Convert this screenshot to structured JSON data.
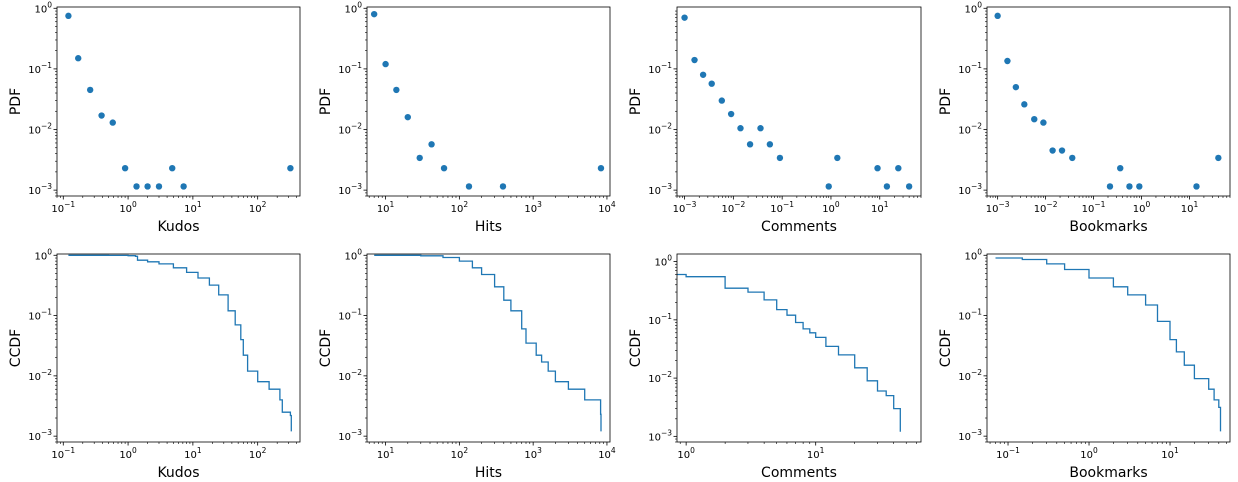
{
  "figure": {
    "marker_color": "#1f77b4",
    "line_color": "#1f77b4"
  },
  "chart_data": [
    {
      "type": "scatter",
      "xscale": "log",
      "yscale": "log",
      "xlabel": "Kudos",
      "ylabel": "PDF",
      "xlim": [
        0.08,
        450
      ],
      "ylim": [
        0.0008,
        1.05
      ],
      "xticks": [
        0.1,
        1,
        10,
        100
      ],
      "xtick_labels": [
        {
          "b": "10",
          "e": "−1"
        },
        {
          "b": "10",
          "e": "0"
        },
        {
          "b": "10",
          "e": "1"
        },
        {
          "b": "10",
          "e": "2"
        }
      ],
      "yticks": [
        0.001,
        0.01,
        0.1,
        1
      ],
      "ytick_labels": [
        {
          "b": "10",
          "e": "−3"
        },
        {
          "b": "10",
          "e": "−2"
        },
        {
          "b": "10",
          "e": "−1"
        },
        {
          "b": "10",
          "e": "0"
        }
      ],
      "points": [
        [
          0.12,
          0.75
        ],
        [
          0.17,
          0.15
        ],
        [
          0.26,
          0.045
        ],
        [
          0.39,
          0.017
        ],
        [
          0.58,
          0.013
        ],
        [
          0.9,
          0.0023
        ],
        [
          1.35,
          0.00115
        ],
        [
          2.0,
          0.00115
        ],
        [
          3.0,
          0.00115
        ],
        [
          4.8,
          0.0023
        ],
        [
          7.2,
          0.00115
        ],
        [
          320,
          0.0023
        ]
      ]
    },
    {
      "type": "scatter",
      "xscale": "log",
      "yscale": "log",
      "xlabel": "Hits",
      "ylabel": "PDF",
      "xlim": [
        5.6,
        11000
      ],
      "ylim": [
        0.0008,
        1.05
      ],
      "xticks": [
        10,
        100,
        1000,
        10000
      ],
      "xtick_labels": [
        {
          "b": "10",
          "e": "1"
        },
        {
          "b": "10",
          "e": "2"
        },
        {
          "b": "10",
          "e": "3"
        },
        {
          "b": "10",
          "e": "4"
        }
      ],
      "yticks": [
        0.001,
        0.01,
        0.1,
        1
      ],
      "ytick_labels": [
        {
          "b": "10",
          "e": "−3"
        },
        {
          "b": "10",
          "e": "−2"
        },
        {
          "b": "10",
          "e": "−1"
        },
        {
          "b": "10",
          "e": "0"
        }
      ],
      "points": [
        [
          7,
          0.8
        ],
        [
          10,
          0.12
        ],
        [
          14,
          0.045
        ],
        [
          20,
          0.016
        ],
        [
          29,
          0.0034
        ],
        [
          42,
          0.0057
        ],
        [
          62,
          0.0023
        ],
        [
          135,
          0.00115
        ],
        [
          390,
          0.00115
        ],
        [
          8300,
          0.0023
        ]
      ]
    },
    {
      "type": "scatter",
      "xscale": "log",
      "yscale": "log",
      "xlabel": "Comments",
      "ylabel": "PDF",
      "xlim": [
        0.0007,
        70
      ],
      "ylim": [
        0.0008,
        1.05
      ],
      "xticks": [
        0.001,
        0.01,
        0.1,
        1,
        10
      ],
      "xtick_labels": [
        {
          "b": "10",
          "e": "−3"
        },
        {
          "b": "10",
          "e": "−2"
        },
        {
          "b": "10",
          "e": "−1"
        },
        {
          "b": "10",
          "e": "0"
        },
        {
          "b": "10",
          "e": "1"
        }
      ],
      "yticks": [
        0.001,
        0.01,
        0.1
      ],
      "ytick_labels": [
        {
          "b": "10",
          "e": "−3"
        },
        {
          "b": "10",
          "e": "−2"
        },
        {
          "b": "10",
          "e": "−1"
        }
      ],
      "points": [
        [
          0.001,
          0.7
        ],
        [
          0.0016,
          0.14
        ],
        [
          0.0024,
          0.08
        ],
        [
          0.0036,
          0.057
        ],
        [
          0.0058,
          0.03
        ],
        [
          0.009,
          0.018
        ],
        [
          0.014,
          0.0105
        ],
        [
          0.022,
          0.0057
        ],
        [
          0.036,
          0.0105
        ],
        [
          0.056,
          0.0057
        ],
        [
          0.09,
          0.0034
        ],
        [
          0.9,
          0.00115
        ],
        [
          1.35,
          0.0034
        ],
        [
          9,
          0.0023
        ],
        [
          14,
          0.00115
        ],
        [
          24,
          0.0023
        ],
        [
          40,
          0.00115
        ]
      ]
    },
    {
      "type": "scatter",
      "xscale": "log",
      "yscale": "log",
      "xlabel": "Bookmarks",
      "ylabel": "PDF",
      "xlim": [
        0.0006,
        70
      ],
      "ylim": [
        0.0008,
        1.05
      ],
      "xticks": [
        0.001,
        0.01,
        0.1,
        1,
        10
      ],
      "xtick_labels": [
        {
          "b": "10",
          "e": "−3"
        },
        {
          "b": "10",
          "e": "−2"
        },
        {
          "b": "10",
          "e": "−1"
        },
        {
          "b": "10",
          "e": "0"
        },
        {
          "b": "10",
          "e": "1"
        }
      ],
      "yticks": [
        0.001,
        0.01,
        0.1,
        1
      ],
      "ytick_labels": [
        {
          "b": "10",
          "e": "−3"
        },
        {
          "b": "10",
          "e": "−2"
        },
        {
          "b": "10",
          "e": "−1"
        },
        {
          "b": "10",
          "e": "0"
        }
      ],
      "points": [
        [
          0.001,
          0.75
        ],
        [
          0.0016,
          0.135
        ],
        [
          0.0024,
          0.05
        ],
        [
          0.0036,
          0.026
        ],
        [
          0.0058,
          0.0148
        ],
        [
          0.009,
          0.013
        ],
        [
          0.014,
          0.0045
        ],
        [
          0.022,
          0.0045
        ],
        [
          0.036,
          0.0034
        ],
        [
          0.22,
          0.00115
        ],
        [
          0.36,
          0.0023
        ],
        [
          0.56,
          0.00115
        ],
        [
          0.9,
          0.00115
        ],
        [
          14,
          0.00115
        ],
        [
          40,
          0.0034
        ]
      ]
    },
    {
      "type": "line",
      "xscale": "log",
      "yscale": "log",
      "step": true,
      "xlabel": "Kudos",
      "ylabel": "CCDF",
      "xlim": [
        0.08,
        450
      ],
      "ylim": [
        0.0008,
        1.05
      ],
      "xticks": [
        0.1,
        1,
        10,
        100
      ],
      "xtick_labels": [
        {
          "b": "10",
          "e": "−1"
        },
        {
          "b": "10",
          "e": "0"
        },
        {
          "b": "10",
          "e": "1"
        },
        {
          "b": "10",
          "e": "2"
        }
      ],
      "yticks": [
        0.001,
        0.01,
        0.1,
        1
      ],
      "ytick_labels": [
        {
          "b": "10",
          "e": "−3"
        },
        {
          "b": "10",
          "e": "−2"
        },
        {
          "b": "10",
          "e": "−1"
        },
        {
          "b": "10",
          "e": "0"
        }
      ],
      "points": [
        [
          0.12,
          1.0
        ],
        [
          0.5,
          0.995
        ],
        [
          1.0,
          0.985
        ],
        [
          1.3,
          0.96
        ],
        [
          1.4,
          0.83
        ],
        [
          2,
          0.78
        ],
        [
          3,
          0.72
        ],
        [
          5,
          0.62
        ],
        [
          8,
          0.52
        ],
        [
          12,
          0.42
        ],
        [
          18,
          0.32
        ],
        [
          25,
          0.22
        ],
        [
          35,
          0.12
        ],
        [
          45,
          0.07
        ],
        [
          55,
          0.04
        ],
        [
          60,
          0.022
        ],
        [
          70,
          0.012
        ],
        [
          100,
          0.008
        ],
        [
          150,
          0.006
        ],
        [
          220,
          0.004
        ],
        [
          240,
          0.0025
        ],
        [
          320,
          0.0022
        ],
        [
          330,
          0.0012
        ]
      ]
    },
    {
      "type": "line",
      "xscale": "log",
      "yscale": "log",
      "step": true,
      "xlabel": "Hits",
      "ylabel": "CCDF",
      "xlim": [
        5.6,
        11000
      ],
      "ylim": [
        0.0008,
        1.05
      ],
      "xticks": [
        10,
        100,
        1000,
        10000
      ],
      "xtick_labels": [
        {
          "b": "10",
          "e": "1"
        },
        {
          "b": "10",
          "e": "2"
        },
        {
          "b": "10",
          "e": "3"
        },
        {
          "b": "10",
          "e": "4"
        }
      ],
      "yticks": [
        0.001,
        0.01,
        0.1,
        1
      ],
      "ytick_labels": [
        {
          "b": "10",
          "e": "−3"
        },
        {
          "b": "10",
          "e": "−2"
        },
        {
          "b": "10",
          "e": "−1"
        },
        {
          "b": "10",
          "e": "0"
        }
      ],
      "points": [
        [
          7,
          1.0
        ],
        [
          30,
          0.98
        ],
        [
          60,
          0.92
        ],
        [
          100,
          0.8
        ],
        [
          150,
          0.62
        ],
        [
          200,
          0.48
        ],
        [
          300,
          0.3
        ],
        [
          400,
          0.18
        ],
        [
          500,
          0.12
        ],
        [
          700,
          0.06
        ],
        [
          800,
          0.035
        ],
        [
          1100,
          0.022
        ],
        [
          1300,
          0.017
        ],
        [
          1600,
          0.012
        ],
        [
          2000,
          0.008
        ],
        [
          3000,
          0.006
        ],
        [
          5000,
          0.004
        ],
        [
          8200,
          0.0023
        ],
        [
          8300,
          0.0012
        ]
      ]
    },
    {
      "type": "line",
      "xscale": "log",
      "yscale": "log",
      "step": true,
      "xlabel": "Comments",
      "ylabel": "CCDF",
      "xlim": [
        0.85,
        65
      ],
      "ylim": [
        0.0008,
        1.35
      ],
      "xticks": [
        1,
        10
      ],
      "xtick_labels": [
        {
          "b": "10",
          "e": "0"
        },
        {
          "b": "10",
          "e": "1"
        }
      ],
      "yticks": [
        0.001,
        0.01,
        0.1,
        1
      ],
      "ytick_labels": [
        {
          "b": "10",
          "e": "−3"
        },
        {
          "b": "10",
          "e": "−2"
        },
        {
          "b": "10",
          "e": "−1"
        },
        {
          "b": "10",
          "e": "0"
        }
      ],
      "points": [
        [
          0.85,
          0.6
        ],
        [
          1,
          0.55
        ],
        [
          2,
          0.35
        ],
        [
          3,
          0.3
        ],
        [
          4,
          0.22
        ],
        [
          5,
          0.15
        ],
        [
          6,
          0.12
        ],
        [
          7,
          0.09
        ],
        [
          8,
          0.07
        ],
        [
          9,
          0.06
        ],
        [
          10,
          0.05
        ],
        [
          12,
          0.035
        ],
        [
          15,
          0.025
        ],
        [
          20,
          0.015
        ],
        [
          25,
          0.009
        ],
        [
          30,
          0.006
        ],
        [
          35,
          0.005
        ],
        [
          40,
          0.003
        ],
        [
          45,
          0.0012
        ]
      ]
    },
    {
      "type": "line",
      "xscale": "log",
      "yscale": "log",
      "step": true,
      "xlabel": "Bookmarks",
      "ylabel": "CCDF",
      "xlim": [
        0.055,
        55
      ],
      "ylim": [
        0.0008,
        1.05
      ],
      "xticks": [
        0.1,
        1,
        10
      ],
      "xtick_labels": [
        {
          "b": "10",
          "e": "−1"
        },
        {
          "b": "10",
          "e": "0"
        },
        {
          "b": "10",
          "e": "1"
        }
      ],
      "yticks": [
        0.001,
        0.01,
        0.1,
        1
      ],
      "ytick_labels": [
        {
          "b": "10",
          "e": "−3"
        },
        {
          "b": "10",
          "e": "−2"
        },
        {
          "b": "10",
          "e": "−1"
        },
        {
          "b": "10",
          "e": "0"
        }
      ],
      "points": [
        [
          0.07,
          0.9
        ],
        [
          0.15,
          0.85
        ],
        [
          0.3,
          0.72
        ],
        [
          0.5,
          0.58
        ],
        [
          1,
          0.42
        ],
        [
          2,
          0.3
        ],
        [
          3,
          0.22
        ],
        [
          5,
          0.15
        ],
        [
          7,
          0.08
        ],
        [
          10,
          0.04
        ],
        [
          12,
          0.025
        ],
        [
          15,
          0.015
        ],
        [
          20,
          0.009
        ],
        [
          30,
          0.006
        ],
        [
          35,
          0.004
        ],
        [
          40,
          0.003
        ],
        [
          42,
          0.0012
        ]
      ]
    }
  ]
}
